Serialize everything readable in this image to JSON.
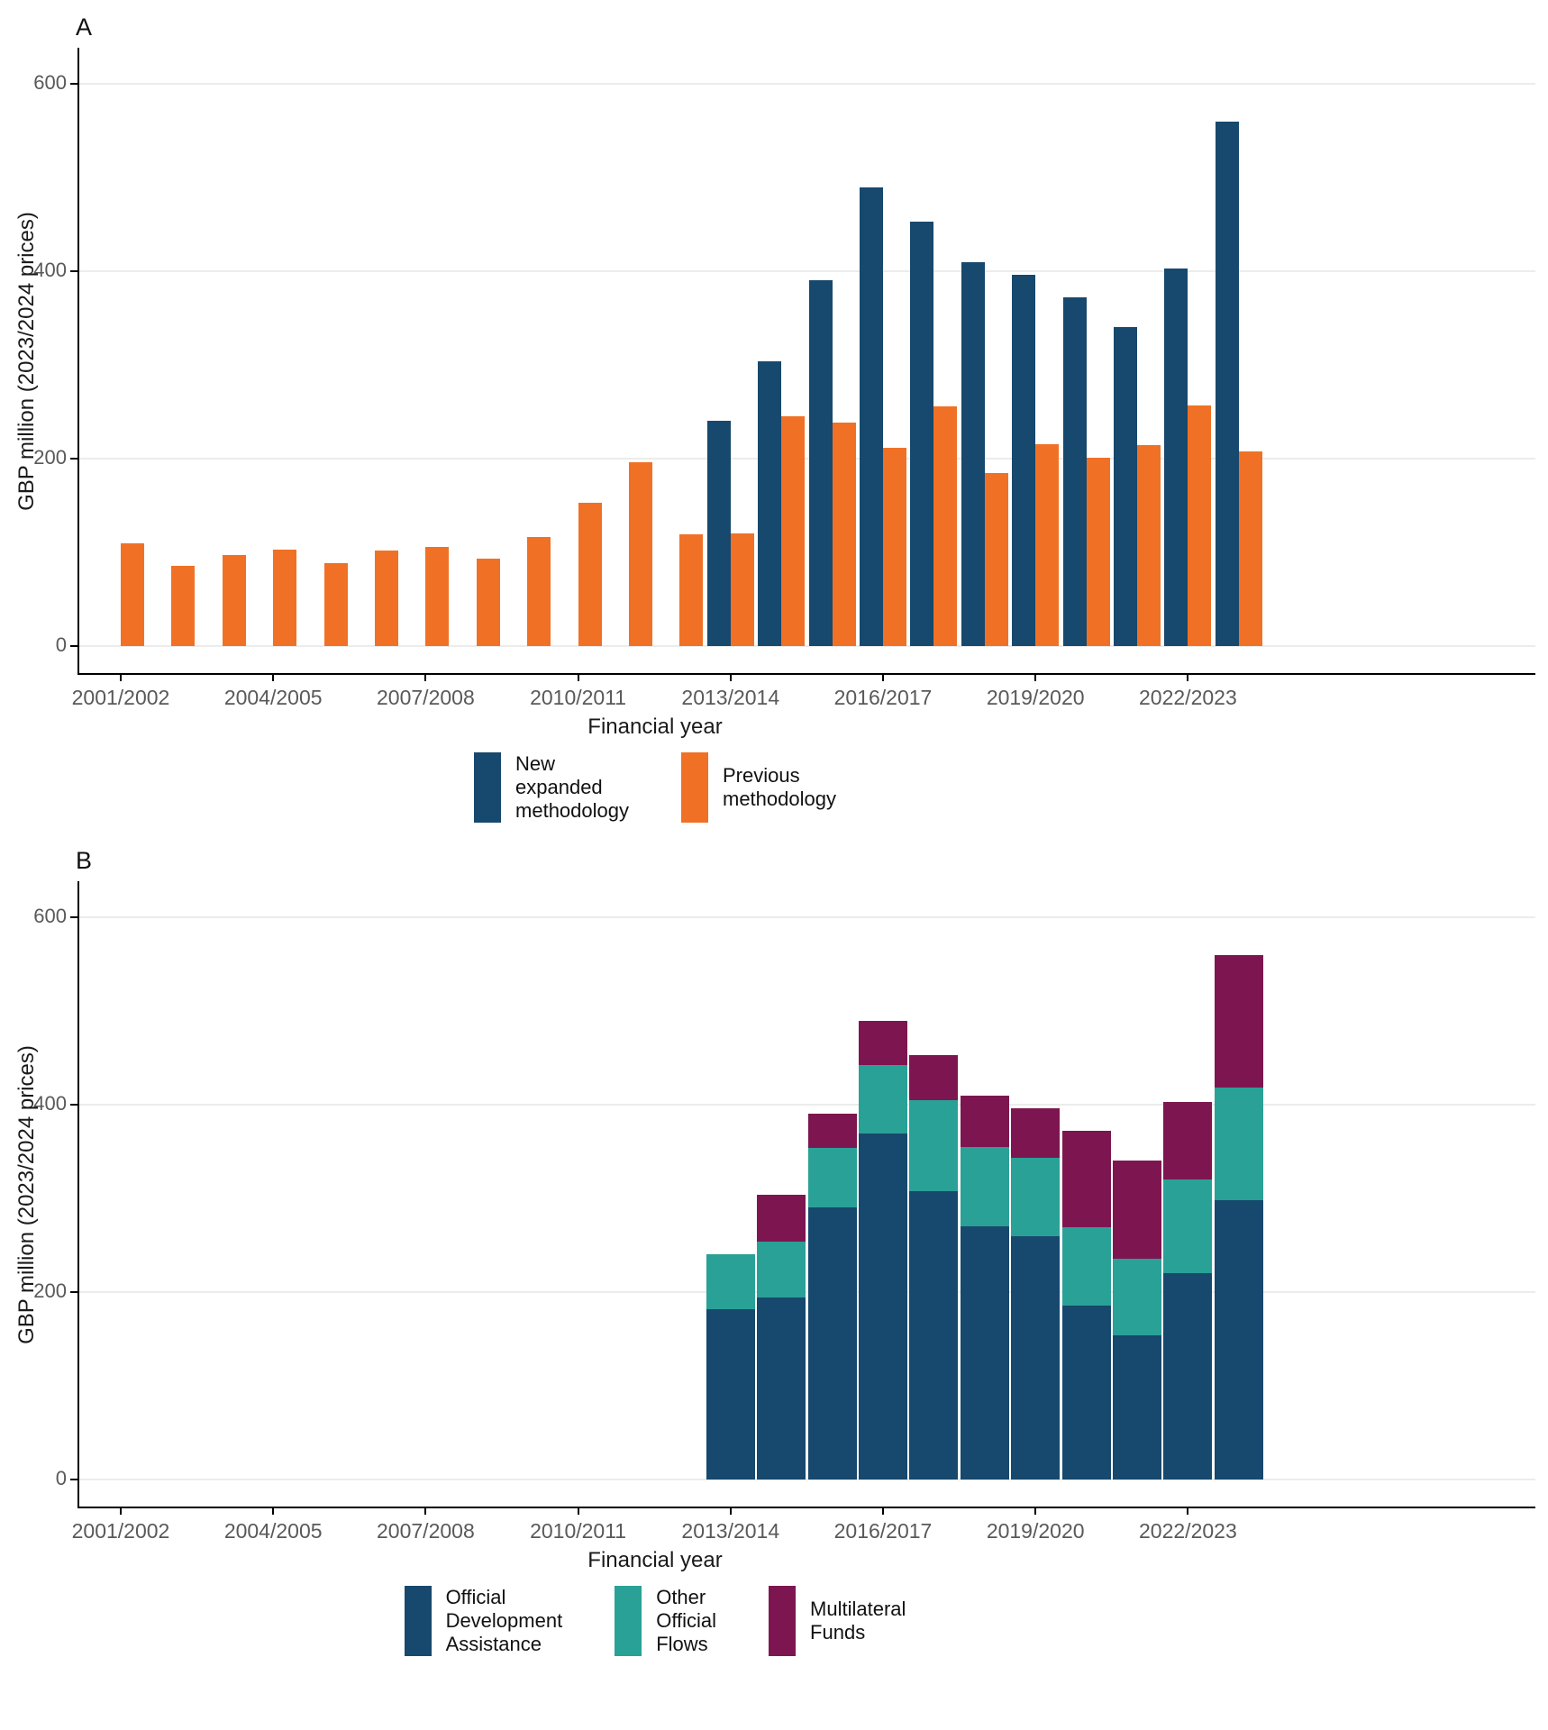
{
  "colors": {
    "new_methodology_blue": "#17486D",
    "previous_methodology_orange": "#F07126",
    "oda_blue": "#17486D",
    "oof_teal": "#2AA196",
    "multilateral_magenta": "#7D1650",
    "gridline": "#ececec",
    "axis_line": "#000000",
    "tick_text": "#595959"
  },
  "panels": [
    {
      "label": "A",
      "y_axis_title": "GBP million (2023/2024 prices)",
      "x_axis_title": "Financial year",
      "y_ticks": [
        "0",
        "200",
        "400",
        "600"
      ],
      "x_tick_labels": [
        "2001/2002",
        "2004/2005",
        "2007/2008",
        "2010/2011",
        "2013/2014",
        "2016/2017",
        "2019/2020",
        "2022/2023"
      ],
      "legend": [
        {
          "name": "New\nexpanded\nmethodology",
          "color": "#17486D"
        },
        {
          "name": "Previous\nmethodology",
          "color": "#F07126"
        }
      ]
    },
    {
      "label": "B",
      "y_axis_title": "GBP million (2023/2024 prices)",
      "x_axis_title": "Financial year",
      "y_ticks": [
        "0",
        "200",
        "400",
        "600"
      ],
      "x_tick_labels": [
        "2001/2002",
        "2004/2005",
        "2007/2008",
        "2010/2011",
        "2013/2014",
        "2016/2017",
        "2019/2020",
        "2022/2023"
      ],
      "legend": [
        {
          "name": "Official\nDevelopment\nAssistance",
          "color": "#17486D"
        },
        {
          "name": "Other\nOfficial\nFlows",
          "color": "#2AA196"
        },
        {
          "name": "Multilateral\nFunds",
          "color": "#7D1650"
        }
      ]
    }
  ],
  "chart_data": [
    {
      "type": "bar",
      "panel": "A",
      "categories": [
        "2001/2002",
        "2002/2003",
        "2003/2004",
        "2004/2005",
        "2005/2006",
        "2006/2007",
        "2007/2008",
        "2008/2009",
        "2009/2010",
        "2010/2011",
        "2011/2012",
        "2012/2013",
        "2013/2014",
        "2014/2015",
        "2015/2016",
        "2016/2017",
        "2017/2018",
        "2018/2019",
        "2019/2020",
        "2020/2021",
        "2021/2022",
        "2022/2023",
        "2023/2024"
      ],
      "series": [
        {
          "name": "New expanded methodology",
          "color": "#17486D",
          "values": [
            null,
            null,
            null,
            null,
            null,
            null,
            null,
            null,
            null,
            null,
            null,
            null,
            240,
            304,
            390,
            489,
            453,
            410,
            396,
            372,
            340,
            403,
            560
          ]
        },
        {
          "name": "Previous methodology",
          "color": "#F07126",
          "values": [
            110,
            86,
            97,
            103,
            88,
            102,
            106,
            93,
            116,
            153,
            196,
            119,
            120,
            245,
            238,
            212,
            256,
            185,
            215,
            201,
            214,
            257,
            208
          ]
        }
      ],
      "xlabel": "Financial year",
      "ylabel": "GBP million (2023/2024 prices)",
      "ylim": [
        0,
        640
      ],
      "grid": true,
      "legend_position": "bottom"
    },
    {
      "type": "stacked-bar",
      "panel": "B",
      "categories": [
        "2001/2002",
        "2002/2003",
        "2003/2004",
        "2004/2005",
        "2005/2006",
        "2006/2007",
        "2007/2008",
        "2008/2009",
        "2009/2010",
        "2010/2011",
        "2011/2012",
        "2012/2013",
        "2013/2014",
        "2014/2015",
        "2015/2016",
        "2016/2017",
        "2017/2018",
        "2018/2019",
        "2019/2020",
        "2020/2021",
        "2021/2022",
        "2022/2023",
        "2023/2024"
      ],
      "series": [
        {
          "name": "Official Development Assistance",
          "color": "#17486D",
          "values": [
            null,
            null,
            null,
            null,
            null,
            null,
            null,
            null,
            null,
            null,
            null,
            null,
            182,
            194,
            290,
            369,
            308,
            270,
            260,
            186,
            154,
            220,
            298
          ]
        },
        {
          "name": "Other Official Flows",
          "color": "#2AA196",
          "values": [
            null,
            null,
            null,
            null,
            null,
            null,
            null,
            null,
            null,
            null,
            null,
            null,
            58,
            60,
            64,
            73,
            97,
            85,
            83,
            83,
            82,
            100,
            120
          ]
        },
        {
          "name": "Multilateral Funds",
          "color": "#7D1650",
          "values": [
            null,
            null,
            null,
            null,
            null,
            null,
            null,
            null,
            null,
            null,
            null,
            null,
            0,
            50,
            36,
            47,
            48,
            55,
            53,
            103,
            104,
            83,
            142
          ]
        }
      ],
      "xlabel": "Financial year",
      "ylabel": "GBP million (2023/2024 prices)",
      "ylim": [
        0,
        640
      ],
      "grid": true,
      "legend_position": "bottom"
    }
  ]
}
